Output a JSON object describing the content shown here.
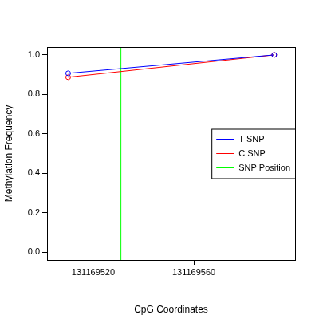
{
  "chart_data": {
    "type": "line",
    "x_label": "CpG Coordinates",
    "y_label": "Methylation Frequency",
    "x": [
      131169510,
      131169592
    ],
    "series": [
      {
        "name": "T SNP",
        "color": "#0000ff",
        "values": [
          0.907,
          1.0
        ],
        "marker": "circle"
      },
      {
        "name": "C SNP",
        "color": "#ff0000",
        "values": [
          0.887,
          1.0
        ],
        "marker": "circle"
      }
    ],
    "snp_line": {
      "name": "SNP Position",
      "color": "#00ff00",
      "x": 131169531
    },
    "xlim": [
      131169501.6,
      131169600.3
    ],
    "xticks": [
      131169520,
      131169560
    ],
    "ylim": [
      -0.04,
      1.04
    ],
    "yticks": [
      {
        "value": 0,
        "label": "0.0"
      },
      0.2,
      0.4,
      0.6,
      0.8,
      {
        "value": 1,
        "label": "1.0"
      }
    ],
    "grid": false,
    "legend": "right"
  }
}
